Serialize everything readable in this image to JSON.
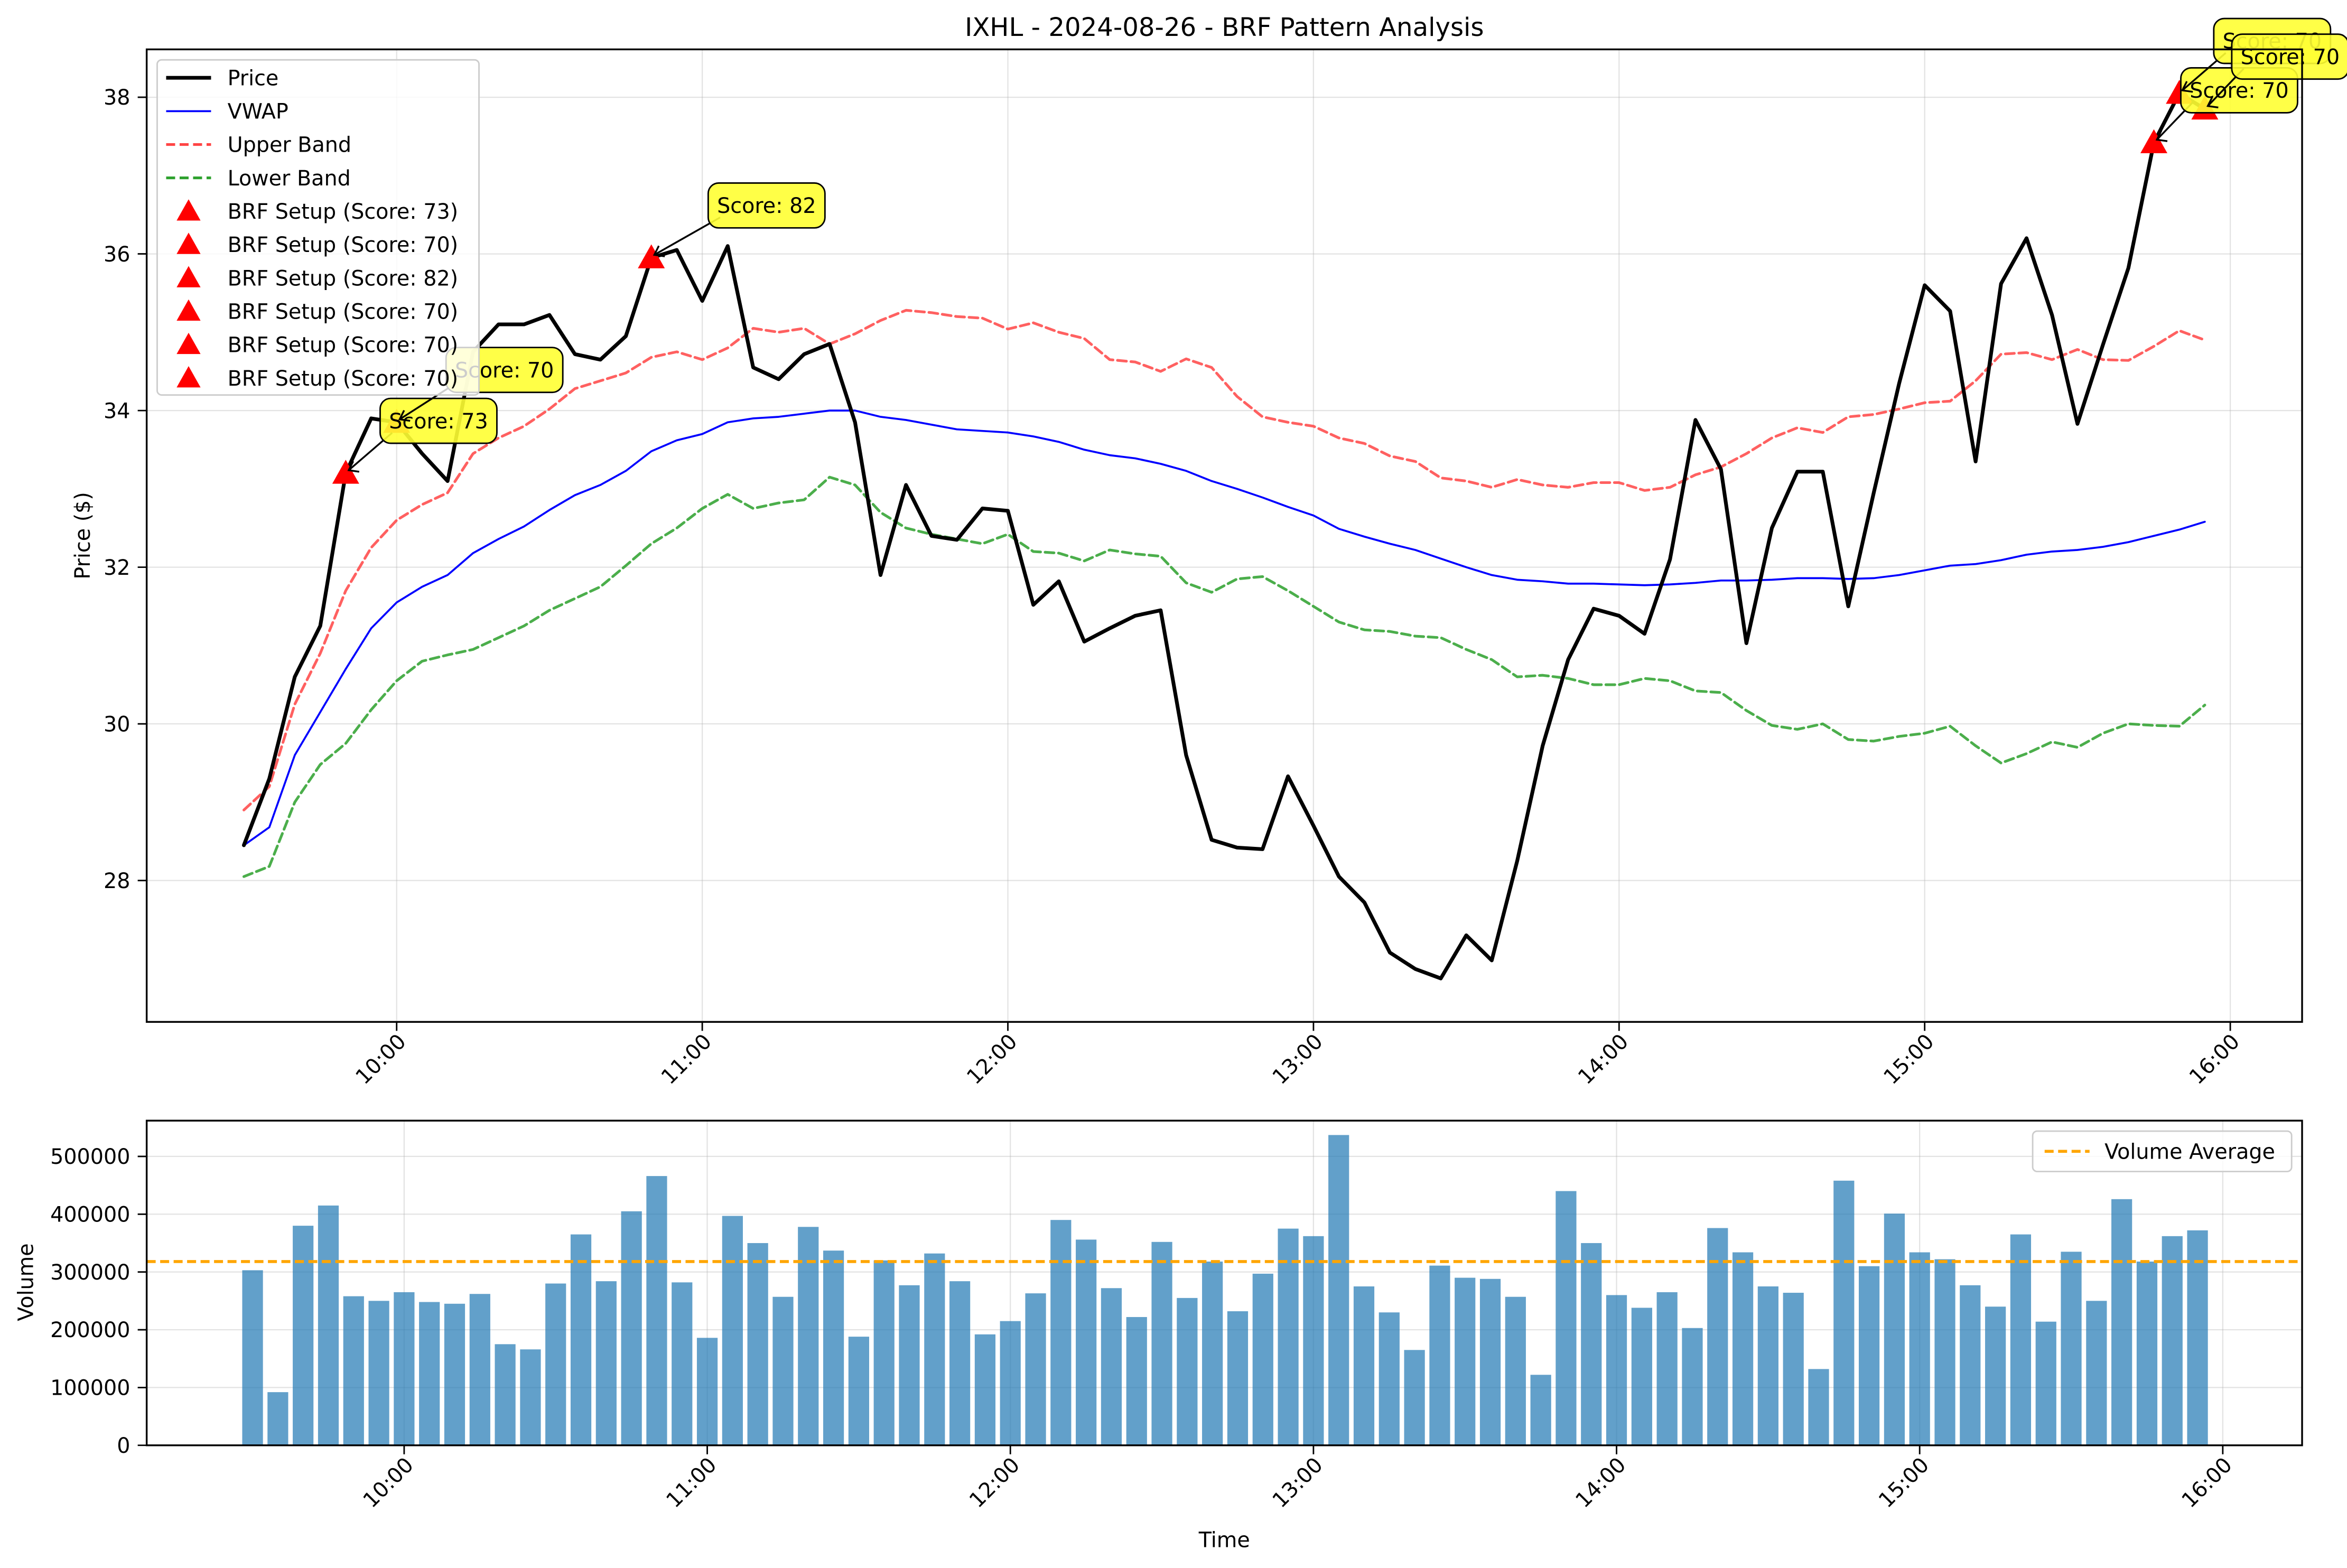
{
  "chart_data": [
    {
      "type": "line",
      "title": "IXHL - 2024-08-26 - BRF Pattern Analysis",
      "xlabel": "",
      "ylabel": "Price ($)",
      "ylim": [
        26.2,
        38.7
      ],
      "x_ticks": [
        "10:00",
        "11:00",
        "12:00",
        "13:00",
        "14:00",
        "15:00",
        "16:00"
      ],
      "y_ticks": [
        "28",
        "30",
        "32",
        "34",
        "36",
        "38"
      ],
      "grid": true,
      "legend_position": "top-left",
      "x": [
        "09:30",
        "09:35",
        "09:40",
        "09:45",
        "09:50",
        "09:55",
        "10:00",
        "10:05",
        "10:10",
        "10:15",
        "10:20",
        "10:25",
        "10:30",
        "10:35",
        "10:40",
        "10:45",
        "10:50",
        "10:55",
        "11:00",
        "11:05",
        "11:10",
        "11:15",
        "11:20",
        "11:25",
        "11:30",
        "11:35",
        "11:40",
        "11:45",
        "11:50",
        "11:55",
        "12:00",
        "12:05",
        "12:10",
        "12:15",
        "12:20",
        "12:25",
        "12:30",
        "12:35",
        "12:40",
        "12:45",
        "12:50",
        "12:55",
        "13:00",
        "13:05",
        "13:10",
        "13:15",
        "13:20",
        "13:25",
        "13:30",
        "13:35",
        "13:40",
        "13:45",
        "13:50",
        "13:55",
        "14:00",
        "14:05",
        "14:10",
        "14:15",
        "14:20",
        "14:25",
        "14:30",
        "14:35",
        "14:40",
        "14:45",
        "14:50",
        "14:55",
        "15:00",
        "15:05",
        "15:10",
        "15:15",
        "15:20",
        "15:25",
        "15:30",
        "15:35",
        "15:40",
        "15:45",
        "15:50",
        "15:55"
      ],
      "series": [
        {
          "name": "Price",
          "color": "#000000",
          "style": "solid",
          "values": [
            28.45,
            29.3,
            30.6,
            31.25,
            33.2,
            33.9,
            33.85,
            33.45,
            33.1,
            34.75,
            35.1,
            35.1,
            35.22,
            34.72,
            34.65,
            34.95,
            35.95,
            36.05,
            35.4,
            36.1,
            34.55,
            34.4,
            34.72,
            34.85,
            33.85,
            31.9,
            33.05,
            32.4,
            32.35,
            32.75,
            32.72,
            31.52,
            31.82,
            31.05,
            31.22,
            31.38,
            31.45,
            29.6,
            28.52,
            28.42,
            28.4,
            29.33,
            28.7,
            28.05,
            27.72,
            27.08,
            26.87,
            26.75,
            27.3,
            26.98,
            28.25,
            29.72,
            30.82,
            31.47,
            31.38,
            31.15,
            32.1,
            33.88,
            33.25,
            31.03,
            32.5,
            33.22,
            33.22,
            31.5,
            32.95,
            34.35,
            35.6,
            35.27,
            33.35,
            35.62,
            36.2,
            35.22,
            33.83,
            34.84,
            35.82,
            37.42,
            38.05,
            37.85
          ]
        },
        {
          "name": "VWAP",
          "color": "#0000ff",
          "style": "solid",
          "values": [
            28.45,
            28.68,
            29.6,
            30.15,
            30.7,
            31.22,
            31.55,
            31.75,
            31.9,
            32.18,
            32.36,
            32.52,
            32.73,
            32.92,
            33.05,
            33.23,
            33.48,
            33.62,
            33.7,
            33.85,
            33.9,
            33.92,
            33.96,
            34.0,
            34.0,
            33.92,
            33.88,
            33.82,
            33.76,
            33.74,
            33.72,
            33.67,
            33.6,
            33.5,
            33.43,
            33.39,
            33.32,
            33.23,
            33.1,
            33.0,
            32.89,
            32.77,
            32.66,
            32.49,
            32.39,
            32.3,
            32.22,
            32.11,
            32.0,
            31.9,
            31.84,
            31.82,
            31.79,
            31.79,
            31.78,
            31.77,
            31.78,
            31.8,
            31.83,
            31.83,
            31.84,
            31.86,
            31.86,
            31.85,
            31.86,
            31.9,
            31.96,
            32.02,
            32.04,
            32.09,
            32.16,
            32.2,
            32.22,
            32.26,
            32.32,
            32.4,
            32.48,
            32.58
          ]
        },
        {
          "name": "Upper Band",
          "color": "#ff4444",
          "style": "dashed",
          "values": [
            28.9,
            29.2,
            30.25,
            30.9,
            31.7,
            32.25,
            32.6,
            32.8,
            32.95,
            33.45,
            33.65,
            33.8,
            34.02,
            34.28,
            34.38,
            34.48,
            34.68,
            34.75,
            34.65,
            34.8,
            35.05,
            35.0,
            35.05,
            34.85,
            34.98,
            35.15,
            35.28,
            35.25,
            35.2,
            35.18,
            35.04,
            35.12,
            35.0,
            34.92,
            34.65,
            34.62,
            34.5,
            34.66,
            34.55,
            34.18,
            33.92,
            33.85,
            33.8,
            33.65,
            33.58,
            33.42,
            33.35,
            33.14,
            33.1,
            33.02,
            33.12,
            33.05,
            33.02,
            33.08,
            33.08,
            32.98,
            33.02,
            33.18,
            33.28,
            33.45,
            33.65,
            33.78,
            33.72,
            33.92,
            33.95,
            34.02,
            34.1,
            34.12,
            34.38,
            34.72,
            34.74,
            34.65,
            34.78,
            34.65,
            34.64,
            34.82,
            35.02,
            34.9
          ]
        },
        {
          "name": "Lower Band",
          "color": "#2ca02c",
          "style": "dashed",
          "values": [
            28.05,
            28.18,
            29.0,
            29.48,
            29.75,
            30.18,
            30.55,
            30.8,
            30.88,
            30.95,
            31.1,
            31.25,
            31.45,
            31.6,
            31.75,
            32.02,
            32.3,
            32.5,
            32.75,
            32.93,
            32.75,
            32.82,
            32.86,
            33.15,
            33.05,
            32.7,
            32.5,
            32.42,
            32.36,
            32.3,
            32.42,
            32.2,
            32.18,
            32.08,
            32.22,
            32.17,
            32.14,
            31.8,
            31.68,
            31.85,
            31.88,
            31.7,
            31.5,
            31.3,
            31.2,
            31.18,
            31.12,
            31.1,
            30.95,
            30.82,
            30.6,
            30.62,
            30.58,
            30.5,
            30.5,
            30.58,
            30.55,
            30.42,
            30.4,
            30.17,
            29.98,
            29.93,
            30.0,
            29.8,
            29.78,
            29.84,
            29.88,
            29.97,
            29.72,
            29.5,
            29.62,
            29.77,
            29.7,
            29.88,
            30.0,
            29.98,
            29.97,
            30.24
          ]
        }
      ],
      "markers": [
        {
          "name": "BRF Setup (Score: 73)",
          "x": "09:50",
          "y": 33.2,
          "score_label": "Score: 73",
          "color": "#ff0000"
        },
        {
          "name": "BRF Setup (Score: 70)",
          "x": "10:00",
          "y": 33.85,
          "score_label": "Score: 70",
          "color": "#ff0000"
        },
        {
          "name": "BRF Setup (Score: 82)",
          "x": "10:50",
          "y": 35.95,
          "score_label": "Score: 82",
          "color": "#ff0000"
        },
        {
          "name": "BRF Setup (Score: 70)",
          "x": "15:45",
          "y": 37.42,
          "score_label": "Score: 70",
          "color": "#ff0000"
        },
        {
          "name": "BRF Setup (Score: 70)",
          "x": "15:50",
          "y": 38.05,
          "score_label": "Score: 70",
          "color": "#ff0000"
        },
        {
          "name": "BRF Setup (Score: 70)",
          "x": "15:55",
          "y": 37.85,
          "score_label": "Score: 70",
          "color": "#ff0000"
        }
      ],
      "annotation_style": {
        "fill": "#ffff33",
        "stroke": "#000000"
      }
    },
    {
      "type": "bar",
      "title": "",
      "xlabel": "Time",
      "ylabel": "Volume",
      "ylim": [
        0,
        560000
      ],
      "x_ticks": [
        "10:00",
        "11:00",
        "12:00",
        "13:00",
        "14:00",
        "15:00",
        "16:00"
      ],
      "y_ticks": [
        "0",
        "100000",
        "200000",
        "300000",
        "400000",
        "500000"
      ],
      "grid": true,
      "legend_position": "top-right",
      "color": "#1f77b4",
      "values": [
        303000,
        92000,
        380000,
        415000,
        258000,
        250000,
        265000,
        248000,
        245000,
        262000,
        175000,
        166000,
        280000,
        365000,
        284000,
        405000,
        466000,
        282000,
        186000,
        397000,
        350000,
        257000,
        378000,
        337000,
        188000,
        320000,
        277000,
        332000,
        284000,
        192000,
        215000,
        263000,
        390000,
        356000,
        272000,
        222000,
        352000,
        255000,
        318000,
        232000,
        297000,
        375000,
        362000,
        537000,
        275000,
        230000,
        165000,
        311000,
        290000,
        288000,
        257000,
        122000,
        440000,
        350000,
        260000,
        238000,
        265000,
        203000,
        376000,
        334000,
        275000,
        264000,
        132000,
        458000,
        310000,
        401000,
        334000,
        322000,
        277000,
        240000,
        365000,
        214000,
        335000,
        250000,
        426000,
        318000,
        362000,
        372000
      ],
      "reference_line": {
        "name": "Volume Average",
        "value": 318000,
        "color": "#ffa500",
        "style": "dashed"
      }
    }
  ]
}
